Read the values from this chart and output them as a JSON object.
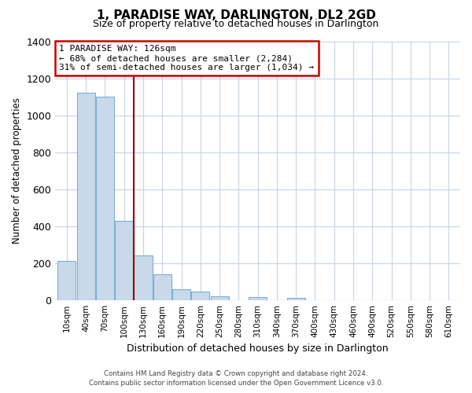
{
  "title": "1, PARADISE WAY, DARLINGTON, DL2 2GD",
  "subtitle": "Size of property relative to detached houses in Darlington",
  "xlabel": "Distribution of detached houses by size in Darlington",
  "ylabel": "Number of detached properties",
  "bar_labels": [
    "10sqm",
    "40sqm",
    "70sqm",
    "100sqm",
    "130sqm",
    "160sqm",
    "190sqm",
    "220sqm",
    "250sqm",
    "280sqm",
    "310sqm",
    "340sqm",
    "370sqm",
    "400sqm",
    "430sqm",
    "460sqm",
    "490sqm",
    "520sqm",
    "550sqm",
    "580sqm",
    "610sqm"
  ],
  "bar_values": [
    210,
    1120,
    1100,
    430,
    240,
    140,
    60,
    45,
    20,
    0,
    15,
    0,
    10,
    0,
    0,
    0,
    0,
    0,
    0,
    0,
    0
  ],
  "bar_color": "#c9d9ea",
  "bar_edge_color": "#7bafd4",
  "property_line_color": "#990000",
  "annotation_line1": "1 PARADISE WAY: 126sqm",
  "annotation_line2": "← 68% of detached houses are smaller (2,284)",
  "annotation_line3": "31% of semi-detached houses are larger (1,034) →",
  "annotation_box_color": "#ffffff",
  "annotation_box_edge": "#cc0000",
  "ylim": [
    0,
    1400
  ],
  "yticks": [
    0,
    200,
    400,
    600,
    800,
    1000,
    1200,
    1400
  ],
  "footer_line1": "Contains HM Land Registry data © Crown copyright and database right 2024.",
  "footer_line2": "Contains public sector information licensed under the Open Government Licence v3.0.",
  "background_color": "#ffffff",
  "grid_color": "#c8d4e0"
}
